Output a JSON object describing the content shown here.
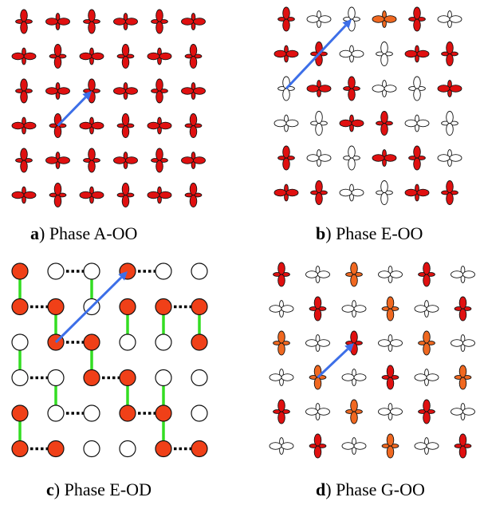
{
  "colors": {
    "red": "#e01010",
    "orange_red": "#f04018",
    "orange": "#f06820",
    "white": "#ffffff",
    "outline": "#111111",
    "arrow": "#3d6fe8",
    "green_bond": "#33dd22",
    "dotted_bond": "#000000"
  },
  "panels": [
    {
      "id": "a",
      "caption_letter": "a",
      "caption_text": ") Phase A-OO",
      "kind": "orbitals",
      "grid": [
        [
          "rV",
          "rH",
          "rV",
          "rH",
          "rV",
          "rH"
        ],
        [
          "rH",
          "rV",
          "rH",
          "rV",
          "rH",
          "rV"
        ],
        [
          "rV",
          "rH",
          "rV",
          "rH",
          "rV",
          "rH"
        ],
        [
          "rH",
          "rV",
          "rH",
          "rV",
          "rH",
          "rV"
        ],
        [
          "rV",
          "rH",
          "rV",
          "rH",
          "rV",
          "rH"
        ],
        [
          "rH",
          "rV",
          "rH",
          "rV",
          "rH",
          "rV"
        ]
      ],
      "arrow": {
        "from": [
          1,
          3
        ],
        "to": [
          2,
          2
        ]
      }
    },
    {
      "id": "b",
      "caption_letter": "b",
      "caption_text": ") Phase E-OO",
      "kind": "orbitals",
      "grid": [
        [
          "rV",
          "wH",
          "wV",
          "oH",
          "rV",
          "wH"
        ],
        [
          "rH",
          "rV",
          "wH",
          "wV",
          "rH",
          "rV"
        ],
        [
          "wV",
          "rH",
          "rV",
          "wH",
          "wV",
          "rH"
        ],
        [
          "wH",
          "wV",
          "rH",
          "rV",
          "wH",
          "wV"
        ],
        [
          "rV",
          "wH",
          "wV",
          "rH",
          "rV",
          "wH"
        ],
        [
          "rH",
          "rV",
          "wH",
          "wV",
          "rH",
          "rV"
        ]
      ],
      "arrow": {
        "from": [
          0,
          2
        ],
        "to": [
          2,
          0
        ]
      }
    },
    {
      "id": "c",
      "caption_letter": "c",
      "caption_text": ") Phase E-OD",
      "kind": "sites",
      "grid": [
        [
          "r",
          "w",
          "w",
          "r",
          "w",
          "w"
        ],
        [
          "r",
          "r",
          "w",
          "r",
          "r",
          "r"
        ],
        [
          "w",
          "r",
          "r",
          "w",
          "w",
          "r"
        ],
        [
          "w",
          "w",
          "r",
          "r",
          "w",
          "w"
        ],
        [
          "r",
          "w",
          "w",
          "r",
          "r",
          "w"
        ],
        [
          "r",
          "r",
          "w",
          "w",
          "r",
          "r"
        ]
      ],
      "arrow": {
        "from": [
          1,
          2
        ],
        "to": [
          3,
          0
        ]
      }
    },
    {
      "id": "d",
      "caption_letter": "d",
      "caption_text": ") Phase G-OO",
      "kind": "orbitals",
      "grid": [
        [
          "rV",
          "wH",
          "oV",
          "wH",
          "rV",
          "wH"
        ],
        [
          "wH",
          "rV",
          "wH",
          "oV",
          "wH",
          "rV"
        ],
        [
          "oV",
          "wH",
          "rV",
          "wH",
          "oV",
          "wH"
        ],
        [
          "wH",
          "oV",
          "wH",
          "rV",
          "wH",
          "oV"
        ],
        [
          "rV",
          "wH",
          "oV",
          "wH",
          "rV",
          "wH"
        ],
        [
          "wH",
          "rV",
          "wH",
          "oV",
          "wH",
          "rV"
        ]
      ],
      "arrow": {
        "from": [
          1,
          3
        ],
        "to": [
          2,
          2
        ]
      }
    }
  ]
}
